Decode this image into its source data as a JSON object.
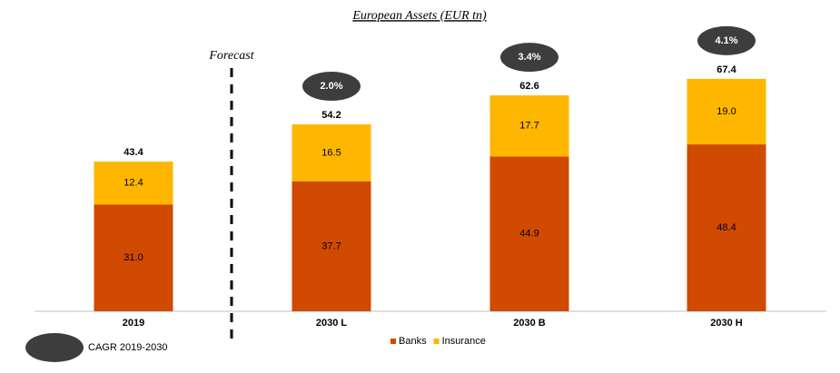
{
  "chart_data": {
    "type": "stacked-bar",
    "title": "European Assets (EUR tn)",
    "annotation": "Forecast",
    "categories": [
      "2019",
      "2030 L",
      "2030 B",
      "2030 H"
    ],
    "series": [
      {
        "name": "Banks",
        "color": "#d04a02",
        "values": [
          31.0,
          37.7,
          44.9,
          48.4
        ],
        "value_labels": [
          "31.0",
          "37.7",
          "44.9",
          "48.4"
        ]
      },
      {
        "name": "Insurance",
        "color": "#ffb600",
        "values": [
          12.4,
          16.5,
          17.7,
          19.0
        ],
        "value_labels": [
          "12.4",
          "16.5",
          "17.7",
          "19.0"
        ]
      }
    ],
    "totals": [
      43.4,
      54.2,
      62.6,
      67.4
    ],
    "cagr": {
      "name": "CAGR 2019-2030",
      "color": "#3d3d3d",
      "values": [
        null,
        2.0,
        3.4,
        4.1
      ],
      "value_labels": [
        null,
        "2.0%",
        "3.4%",
        "4.1%"
      ]
    },
    "grid": false
  }
}
